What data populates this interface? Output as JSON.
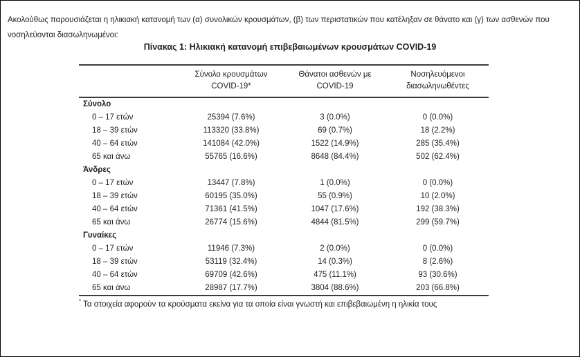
{
  "page": {
    "intro_paragraph": "Ακολούθως παρουσιάζεται η ηλικιακή κατανομή των (α) συνολικών κρουσμάτων, (β) των περιστατικών που κατέληξαν σε θάνατο και (γ) των ασθενών που νοσηλεύονται διασωληνωμένοι:",
    "table_title": "Πίνακας 1: Ηλικιακή κατανομή επιβεβαιωμένων κρουσμάτων COVID-19",
    "footnote_marker": "*",
    "footnote_text": "Τα στοιχεία αφορούν τα κρούσματα εκείνα για τα οποία είναι γνωστή και επιβεβαιωμένη η ηλικία τους"
  },
  "table": {
    "column_headers": [
      "Σύνολο κρουσμάτων\nCOVID-19*",
      "Θάνατοι ασθενών με\nCOVID-19",
      "Νοσηλευόμενοι\nδιασωληνωθέντες"
    ],
    "sections": [
      {
        "label": "Σύνολο",
        "rows": [
          {
            "age": "0 – 17 ετών",
            "cases": "25394 (7.6%)",
            "deaths": "3 (0.0%)",
            "intubated": "0 (0.0%)"
          },
          {
            "age": "18 – 39 ετών",
            "cases": "113320 (33.8%)",
            "deaths": "69 (0.7%)",
            "intubated": "18 (2.2%)"
          },
          {
            "age": "40 – 64 ετών",
            "cases": "141084 (42.0%)",
            "deaths": "1522 (14.9%)",
            "intubated": "285 (35.4%)"
          },
          {
            "age": "65 και άνω",
            "cases": "55765 (16.6%)",
            "deaths": "8648 (84.4%)",
            "intubated": "502 (62.4%)"
          }
        ]
      },
      {
        "label": "Άνδρες",
        "rows": [
          {
            "age": "0 – 17 ετών",
            "cases": "13447 (7.8%)",
            "deaths": "1 (0.0%)",
            "intubated": "0 (0.0%)"
          },
          {
            "age": "18 – 39 ετών",
            "cases": "60195 (35.0%)",
            "deaths": "55 (0.9%)",
            "intubated": "10 (2.0%)"
          },
          {
            "age": "40 – 64 ετών",
            "cases": "71361 (41.5%)",
            "deaths": "1047 (17.6%)",
            "intubated": "192 (38.3%)"
          },
          {
            "age": "65 και άνω",
            "cases": "26774 (15.6%)",
            "deaths": "4844 (81.5%)",
            "intubated": "299 (59.7%)"
          }
        ]
      },
      {
        "label": "Γυναίκες",
        "rows": [
          {
            "age": "0 – 17 ετών",
            "cases": "11946 (7.3%)",
            "deaths": "2 (0.0%)",
            "intubated": "0 (0.0%)"
          },
          {
            "age": "18 – 39 ετών",
            "cases": "53119 (32.4%)",
            "deaths": "14 (0.3%)",
            "intubated": "8 (2.6%)"
          },
          {
            "age": "40 – 64 ετών",
            "cases": "69709 (42.6%)",
            "deaths": "475 (11.1%)",
            "intubated": "93 (30.6%)"
          },
          {
            "age": "65 και άνω",
            "cases": "28987 (17.7%)",
            "deaths": "3804 (88.6%)",
            "intubated": "203 (66.8%)"
          }
        ]
      }
    ]
  },
  "colors": {
    "background": "#ffffff",
    "text": "#1f1f1f",
    "rule": "#3c3c3c",
    "page_border": "#000000"
  }
}
